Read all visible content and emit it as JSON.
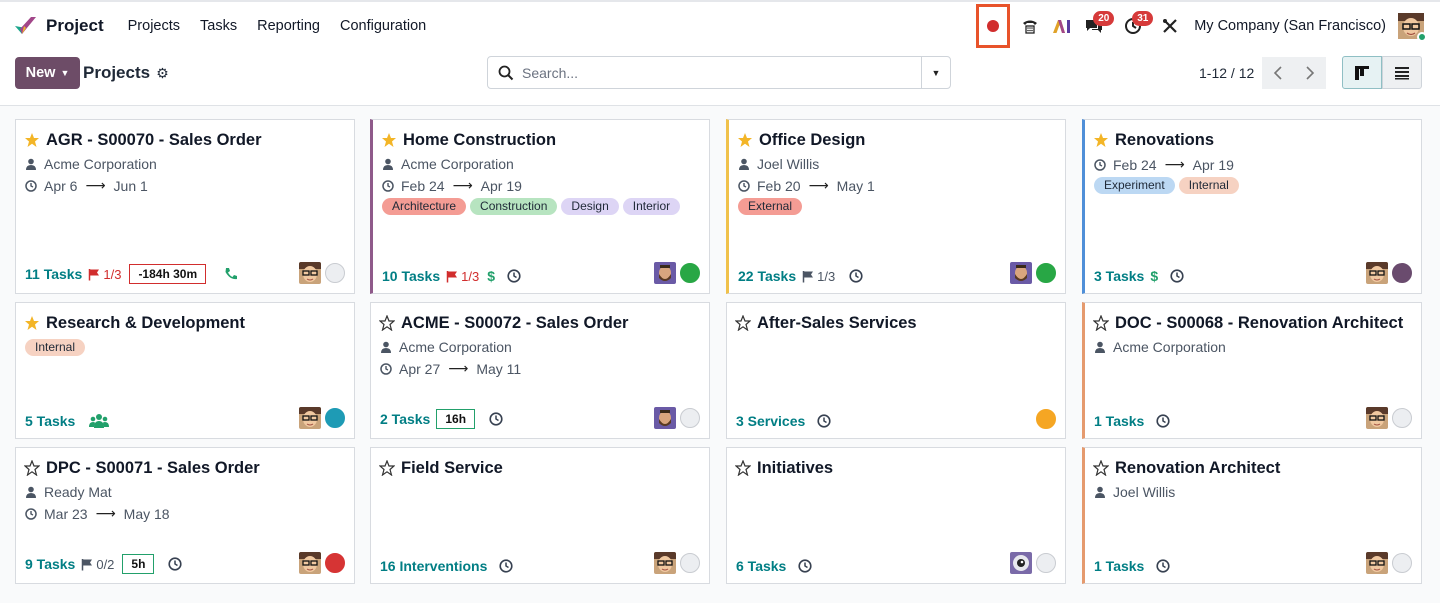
{
  "navbar": {
    "app_name": "Project",
    "menu": [
      "Projects",
      "Tasks",
      "Reporting",
      "Configuration"
    ],
    "chat_badge": "20",
    "activity_badge": "31",
    "ai_label": "AI",
    "company": "My Company (San Francisco)"
  },
  "control": {
    "new_label": "New",
    "title": "Projects",
    "search_placeholder": "Search...",
    "pager": "1-12 / 12"
  },
  "colors": {
    "accent": "#6d4c67",
    "link": "#017e84",
    "star": "#f3b527",
    "status_green": "#28a745",
    "status_red": "#d63434",
    "status_orange": "#f5a623",
    "status_teal": "#1e9bb5",
    "status_purple": "#6a4b6e"
  },
  "cards": [
    {
      "title": "AGR - S00070 - Sales Order",
      "favorite": true,
      "customer": "Acme Corporation",
      "start": "Apr 6",
      "end": "Jun 1",
      "tags": [],
      "tasks": "11 Tasks",
      "milestone": "1/3",
      "milestone_color": "red",
      "hours": "-184h 30m",
      "hours_color": "red",
      "icon": "phone-icon",
      "status": "empty"
    },
    {
      "title": "Home Construction",
      "favorite": true,
      "customer": "Acme Corporation",
      "start": "Feb 24",
      "end": "Apr 19",
      "tags": [
        {
          "label": "Architecture",
          "color": "#f49c94"
        },
        {
          "label": "Construction",
          "color": "#b7e4c0"
        },
        {
          "label": "Design",
          "color": "#ddd5f5"
        },
        {
          "label": "Interior",
          "color": "#ddd5f5"
        }
      ],
      "tasks": "10 Tasks",
      "milestone": "1/3",
      "milestone_color": "red",
      "icon": "dollar-icon",
      "status": "green",
      "border": "#8f5a8a"
    },
    {
      "title": "Office Design",
      "favorite": true,
      "customer": "Joel Willis",
      "start": "Feb 20",
      "end": "May 1",
      "tags": [
        {
          "label": "External",
          "color": "#f49c94"
        }
      ],
      "tasks": "22 Tasks",
      "milestone": "1/3",
      "milestone_color": "gray",
      "status": "green",
      "border": "#f0c14b"
    },
    {
      "title": "Renovations",
      "favorite": true,
      "customer": "",
      "start": "Feb 24",
      "end": "Apr 19",
      "tags": [
        {
          "label": "Experiment",
          "color": "#bcd8f3"
        },
        {
          "label": "Internal",
          "color": "#f6d2c2"
        }
      ],
      "tasks": "3 Tasks",
      "icon": "dollar-icon",
      "status": "purple",
      "border": "#4f8fd8"
    },
    {
      "title": "Research & Development",
      "favorite": true,
      "customer": "",
      "start": "",
      "end": "",
      "tags": [
        {
          "label": "Internal",
          "color": "#f6d2c2"
        }
      ],
      "tasks": "5 Tasks",
      "icon": "users-icon",
      "status": "teal"
    },
    {
      "title": "ACME - S00072 - Sales Order",
      "favorite": false,
      "customer": "Acme Corporation",
      "start": "Apr 27",
      "end": "May 11",
      "tags": [],
      "tasks": "2 Tasks",
      "hours": "16h",
      "hours_color": "green",
      "status": "empty"
    },
    {
      "title": "After-Sales Services",
      "favorite": false,
      "customer": "",
      "start": "",
      "end": "",
      "tags": [],
      "tasks": "3 Services",
      "status": "orange"
    },
    {
      "title": "DOC - S00068 - Renovation Architect",
      "favorite": false,
      "customer": "Acme Corporation",
      "start": "",
      "end": "",
      "tags": [],
      "tasks": "1 Tasks",
      "status": "empty",
      "border": "#e59a6e"
    },
    {
      "title": "DPC - S00071 - Sales Order",
      "favorite": false,
      "customer": "Ready Mat",
      "start": "Mar 23",
      "end": "May 18",
      "tags": [],
      "tasks": "9 Tasks",
      "milestone": "0/2",
      "milestone_color": "gray",
      "hours": "5h",
      "hours_color": "green",
      "status": "red"
    },
    {
      "title": "Field Service",
      "favorite": false,
      "customer": "",
      "start": "",
      "end": "",
      "tags": [],
      "tasks": "16 Interventions",
      "status": "empty"
    },
    {
      "title": "Initiatives",
      "favorite": false,
      "customer": "",
      "start": "",
      "end": "",
      "tags": [],
      "tasks": "6 Tasks",
      "status": "empty"
    },
    {
      "title": "Renovation Architect",
      "favorite": false,
      "customer": "Joel Willis",
      "start": "",
      "end": "",
      "tags": [],
      "tasks": "1 Tasks",
      "status": "empty",
      "border": "#e59a6e"
    }
  ]
}
